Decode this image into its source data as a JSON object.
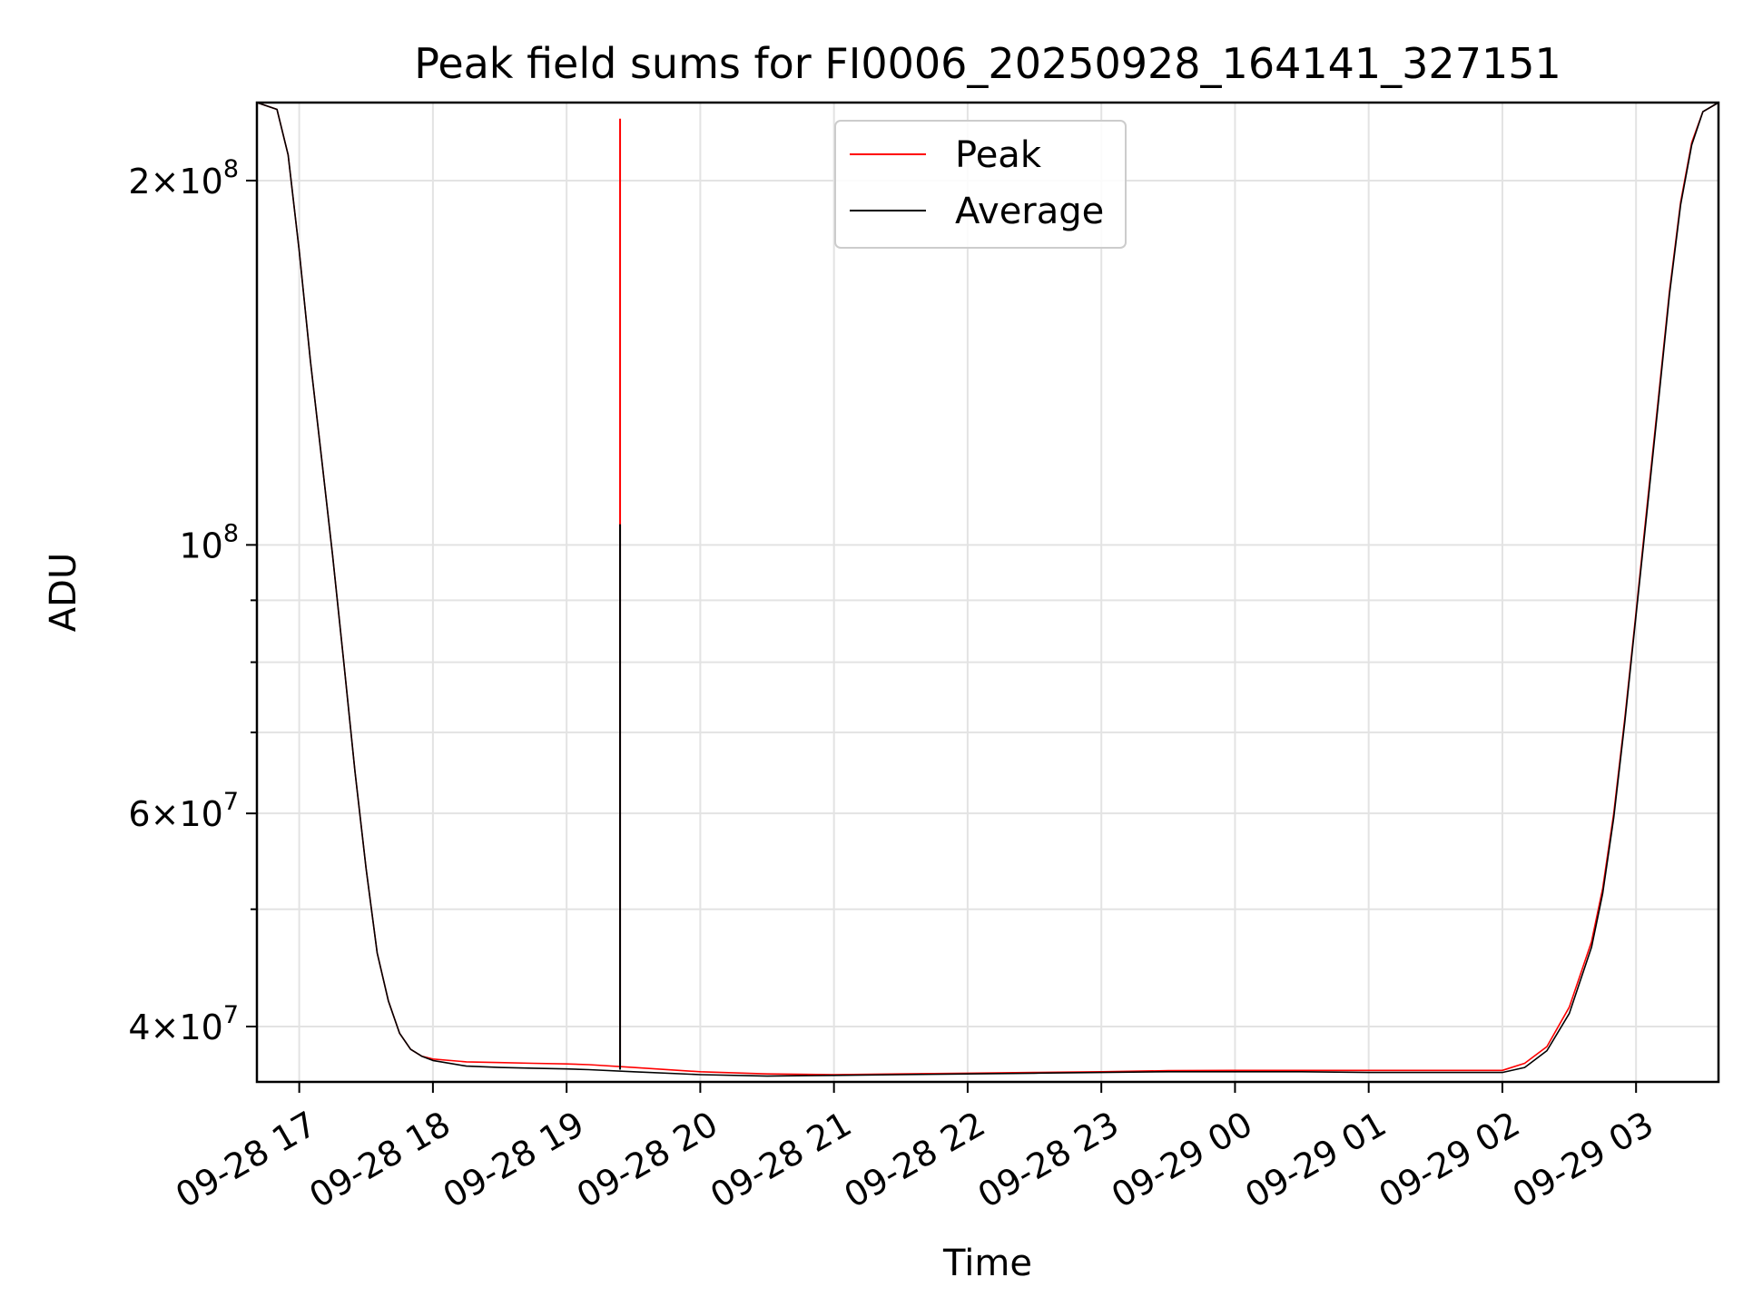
{
  "chart_data": {
    "type": "line",
    "title": "Peak field sums for FI0006_20250928_164141_327151",
    "xlabel": "Time",
    "ylabel": "ADU",
    "x_range": [
      "2025-09-28 16:41",
      "2025-09-29 03:37"
    ],
    "y_scale": "log",
    "ylim": [
      36000000,
      232000000
    ],
    "grid": true,
    "legend_position": "upper center",
    "x_ticks": [
      {
        "value": "2025-09-28 17:00",
        "label": "09-28 17"
      },
      {
        "value": "2025-09-28 18:00",
        "label": "09-28 18"
      },
      {
        "value": "2025-09-28 19:00",
        "label": "09-28 19"
      },
      {
        "value": "2025-09-28 20:00",
        "label": "09-28 20"
      },
      {
        "value": "2025-09-28 21:00",
        "label": "09-28 21"
      },
      {
        "value": "2025-09-28 22:00",
        "label": "09-28 22"
      },
      {
        "value": "2025-09-28 23:00",
        "label": "09-28 23"
      },
      {
        "value": "2025-09-29 00:00",
        "label": "09-29 00"
      },
      {
        "value": "2025-09-29 01:00",
        "label": "09-29 01"
      },
      {
        "value": "2025-09-29 02:00",
        "label": "09-29 02"
      },
      {
        "value": "2025-09-29 03:00",
        "label": "09-29 03"
      }
    ],
    "y_ticks": [
      {
        "value": 40000000,
        "base": "4",
        "exp": "7"
      },
      {
        "value": 60000000,
        "base": "6",
        "exp": "7"
      },
      {
        "value": 100000000,
        "base": "",
        "exp": "8"
      },
      {
        "value": 200000000,
        "base": "2",
        "exp": "8"
      }
    ],
    "y_minor_ticks": [
      50000000,
      70000000,
      80000000,
      90000000
    ],
    "series": [
      {
        "name": "Peak",
        "color": "#ff0000",
        "x": [
          "2025-09-28 16:41",
          "2025-09-28 16:50",
          "2025-09-28 16:55",
          "2025-09-28 17:00",
          "2025-09-28 17:05",
          "2025-09-28 17:10",
          "2025-09-28 17:15",
          "2025-09-28 17:20",
          "2025-09-28 17:25",
          "2025-09-28 17:30",
          "2025-09-28 17:35",
          "2025-09-28 17:40",
          "2025-09-28 17:45",
          "2025-09-28 17:50",
          "2025-09-28 17:55",
          "2025-09-28 18:00",
          "2025-09-28 18:15",
          "2025-09-28 18:30",
          "2025-09-28 18:45",
          "2025-09-28 19:00",
          "2025-09-28 19:10",
          "2025-09-28 19:30",
          "2025-09-28 20:00",
          "2025-09-28 20:30",
          "2025-09-28 21:00",
          "2025-09-28 21:30",
          "2025-09-28 22:00",
          "2025-09-28 22:30",
          "2025-09-28 23:00",
          "2025-09-28 23:30",
          "2025-09-29 00:00",
          "2025-09-29 00:30",
          "2025-09-29 01:00",
          "2025-09-29 01:30",
          "2025-09-29 02:00",
          "2025-09-29 02:10",
          "2025-09-29 02:20",
          "2025-09-29 02:30",
          "2025-09-29 02:40",
          "2025-09-29 02:45",
          "2025-09-29 02:50",
          "2025-09-29 02:55",
          "2025-09-29 03:00",
          "2025-09-29 03:05",
          "2025-09-29 03:10",
          "2025-09-29 03:15",
          "2025-09-29 03:20",
          "2025-09-29 03:25",
          "2025-09-29 03:30",
          "2025-09-29 03:37"
        ],
        "y": [
          232000000,
          229000000,
          210000000,
          175000000,
          142000000,
          118000000,
          98000000,
          80000000,
          65000000,
          54000000,
          46000000,
          42000000,
          39500000,
          38300000,
          37800000,
          37600000,
          37400000,
          37350000,
          37300000,
          37250000,
          37200000,
          37000000,
          36700000,
          36550000,
          36500000,
          36550000,
          36600000,
          36650000,
          36700000,
          36780000,
          36800000,
          36800000,
          36800000,
          36800000,
          36800000,
          37300000,
          38500000,
          41500000,
          47000000,
          52000000,
          60000000,
          72000000,
          88000000,
          108000000,
          132000000,
          162000000,
          192000000,
          215000000,
          228000000,
          232000000
        ],
        "spike": {
          "x": "2025-09-28 19:24",
          "y": 225000000
        }
      },
      {
        "name": "Average",
        "color": "#000000",
        "x": [
          "2025-09-28 16:41",
          "2025-09-28 16:50",
          "2025-09-28 16:55",
          "2025-09-28 17:00",
          "2025-09-28 17:05",
          "2025-09-28 17:10",
          "2025-09-28 17:15",
          "2025-09-28 17:20",
          "2025-09-28 17:25",
          "2025-09-28 17:30",
          "2025-09-28 17:35",
          "2025-09-28 17:40",
          "2025-09-28 17:45",
          "2025-09-28 17:50",
          "2025-09-28 17:55",
          "2025-09-28 18:00",
          "2025-09-28 18:15",
          "2025-09-28 18:30",
          "2025-09-28 18:45",
          "2025-09-28 19:00",
          "2025-09-28 19:10",
          "2025-09-28 19:30",
          "2025-09-28 20:00",
          "2025-09-28 20:30",
          "2025-09-28 21:00",
          "2025-09-28 21:30",
          "2025-09-28 22:00",
          "2025-09-28 22:30",
          "2025-09-28 23:00",
          "2025-09-28 23:30",
          "2025-09-29 00:00",
          "2025-09-29 00:30",
          "2025-09-29 01:00",
          "2025-09-29 01:30",
          "2025-09-29 02:00",
          "2025-09-29 02:10",
          "2025-09-29 02:20",
          "2025-09-29 02:30",
          "2025-09-29 02:40",
          "2025-09-29 02:45",
          "2025-09-29 02:50",
          "2025-09-29 02:55",
          "2025-09-29 03:00",
          "2025-09-29 03:05",
          "2025-09-29 03:10",
          "2025-09-29 03:15",
          "2025-09-29 03:20",
          "2025-09-29 03:25",
          "2025-09-29 03:30",
          "2025-09-29 03:37"
        ],
        "y": [
          232000000,
          229000000,
          210000000,
          175000000,
          142000000,
          118000000,
          98000000,
          80000000,
          65000000,
          54000000,
          46000000,
          42000000,
          39500000,
          38300000,
          37800000,
          37500000,
          37100000,
          37000000,
          36950000,
          36900000,
          36850000,
          36700000,
          36500000,
          36400000,
          36450000,
          36500000,
          36550000,
          36600000,
          36650000,
          36700000,
          36700000,
          36700000,
          36650000,
          36650000,
          36650000,
          37000000,
          38200000,
          41000000,
          46500000,
          51500000,
          59500000,
          71500000,
          87500000,
          107000000,
          131000000,
          161000000,
          191000000,
          214000000,
          228000000,
          232000000
        ],
        "spike": {
          "x": "2025-09-28 19:24",
          "y": 104000000
        }
      }
    ]
  }
}
